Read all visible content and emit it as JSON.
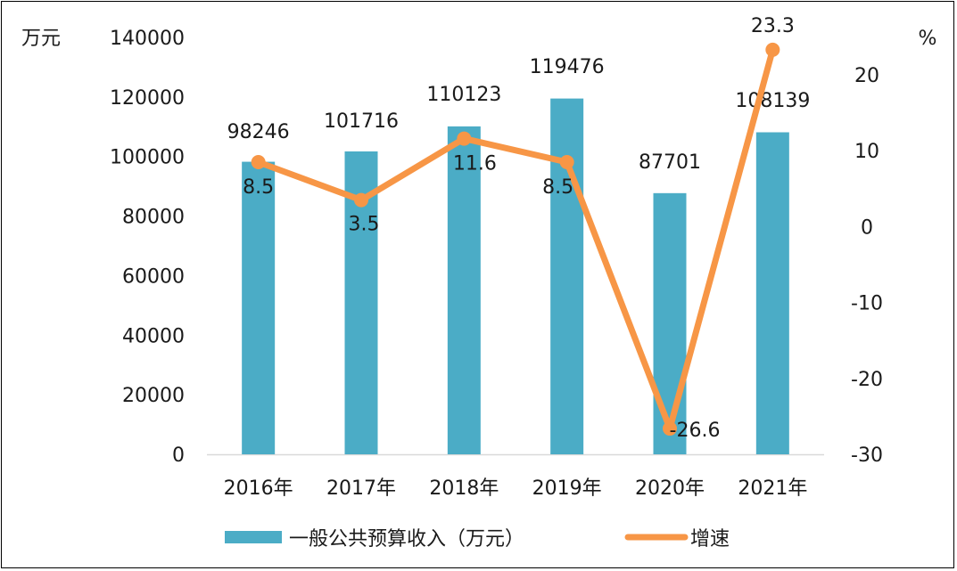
{
  "chart_data": {
    "type": "bar+line",
    "categories": [
      "2016年",
      "2017年",
      "2018年",
      "2019年",
      "2020年",
      "2021年"
    ],
    "series": [
      {
        "name": "一般公共预算收入（万元）",
        "type": "bar",
        "axis": "left",
        "values": [
          98246,
          101716,
          110123,
          119476,
          87701,
          108139
        ],
        "color": "#4bacc6"
      },
      {
        "name": "增速",
        "type": "line",
        "axis": "right",
        "values": [
          8.5,
          3.5,
          11.6,
          8.5,
          -26.6,
          23.3
        ],
        "color": "#f79646"
      }
    ],
    "left_axis": {
      "unit": "万元",
      "ylim": [
        0,
        140000
      ],
      "ticks": [
        "0",
        "20000",
        "40000",
        "60000",
        "80000",
        "100000",
        "120000",
        "140000"
      ]
    },
    "right_axis": {
      "unit": "%",
      "ylim": [
        -30,
        20
      ],
      "ticks": [
        "-30",
        "-20",
        "-10",
        "0",
        "10",
        "20"
      ]
    },
    "bar_labels": [
      "98246",
      "101716",
      "110123",
      "119476",
      "87701",
      "108139"
    ],
    "line_labels": [
      "8.5",
      "3.5",
      "11.6",
      "8.5",
      "-26.6",
      "23.3"
    ],
    "grid": false,
    "legend_position": "bottom"
  }
}
